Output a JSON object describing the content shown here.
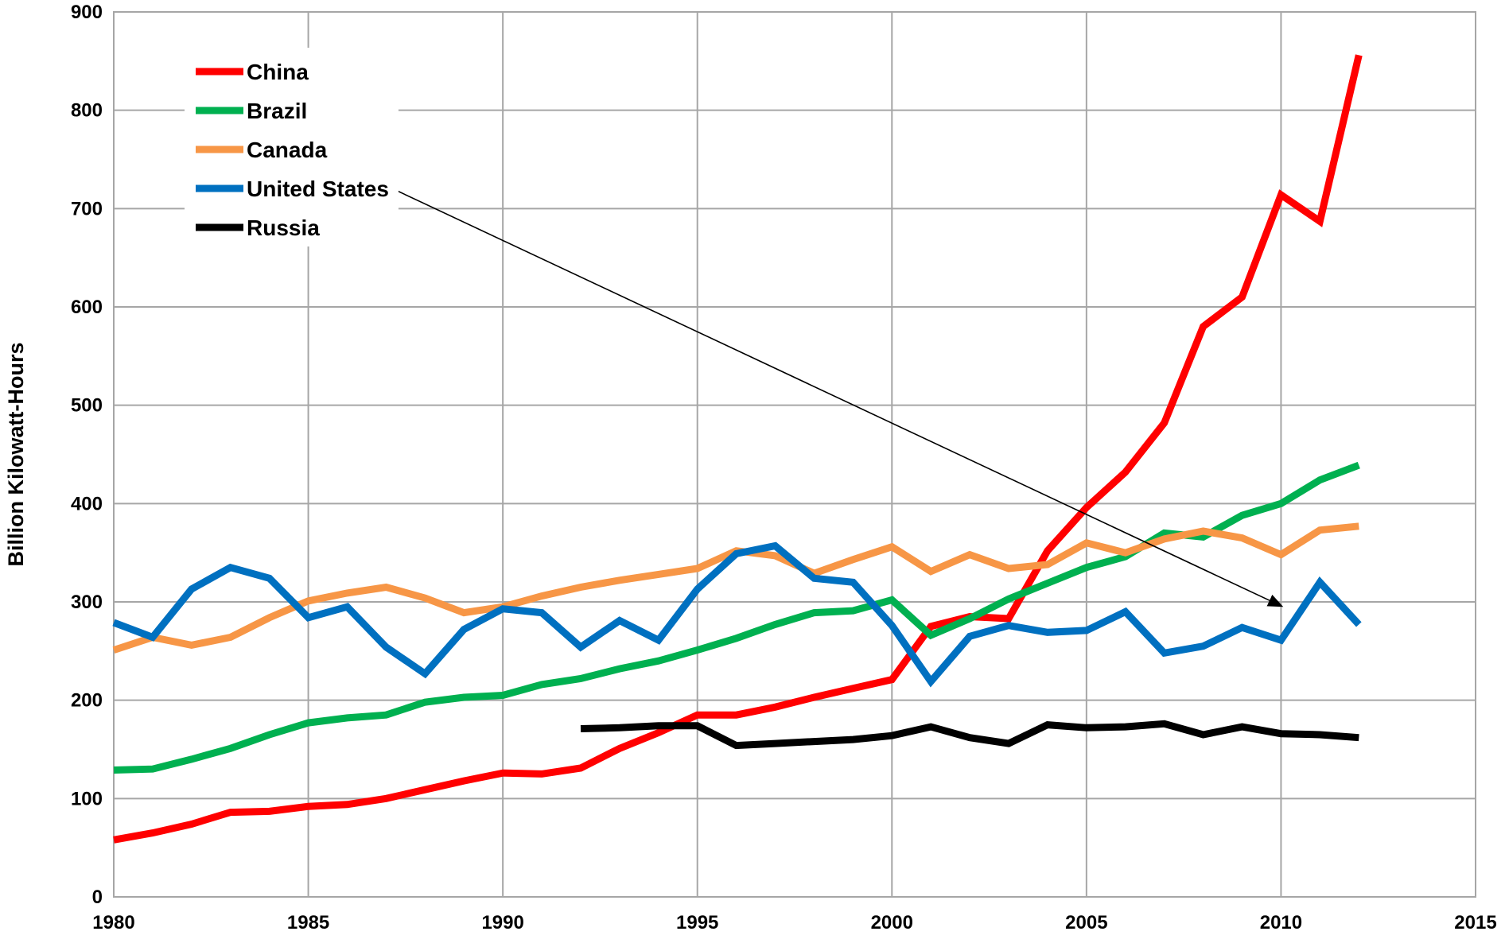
{
  "chart_data": {
    "type": "line",
    "title": "",
    "xlabel": "",
    "ylabel": "Billion Kilowatt-Hours",
    "xlim": [
      1980,
      2015
    ],
    "ylim": [
      0,
      900
    ],
    "xticks": [
      1980,
      1985,
      1990,
      1995,
      2000,
      2005,
      2010,
      2015
    ],
    "yticks": [
      0,
      100,
      200,
      300,
      400,
      500,
      600,
      700,
      800,
      900
    ],
    "grid": true,
    "legend_position": "top-left",
    "series": [
      {
        "name": "China",
        "color": "#ff0000",
        "x": [
          1980,
          1981,
          1982,
          1983,
          1984,
          1985,
          1986,
          1987,
          1988,
          1989,
          1990,
          1991,
          1992,
          1993,
          1994,
          1995,
          1996,
          1997,
          1998,
          1999,
          2000,
          2001,
          2002,
          2003,
          2004,
          2005,
          2006,
          2007,
          2008,
          2009,
          2010,
          2011,
          2012
        ],
        "values": [
          58,
          65,
          74,
          86,
          87,
          92,
          94,
          100,
          109,
          118,
          126,
          125,
          131,
          151,
          167,
          185,
          185,
          193,
          203,
          212,
          221,
          275,
          285,
          283,
          352,
          396,
          432,
          482,
          580,
          610,
          714,
          687,
          856
        ]
      },
      {
        "name": "Brazil",
        "color": "#00b050",
        "x": [
          1980,
          1981,
          1982,
          1983,
          1984,
          1985,
          1986,
          1987,
          1988,
          1989,
          1990,
          1991,
          1992,
          1993,
          1994,
          1995,
          1996,
          1997,
          1998,
          1999,
          2000,
          2001,
          2002,
          2003,
          2004,
          2005,
          2006,
          2007,
          2008,
          2009,
          2010,
          2011,
          2012
        ],
        "values": [
          129,
          130,
          140,
          151,
          165,
          177,
          182,
          185,
          198,
          203,
          205,
          216,
          222,
          232,
          240,
          251,
          263,
          277,
          289,
          291,
          302,
          266,
          283,
          303,
          319,
          335,
          346,
          370,
          366,
          388,
          400,
          424,
          439
        ]
      },
      {
        "name": "Canada",
        "color": "#f79646",
        "x": [
          1980,
          1981,
          1982,
          1983,
          1984,
          1985,
          1986,
          1987,
          1988,
          1989,
          1990,
          1991,
          1992,
          1993,
          1994,
          1995,
          1996,
          1997,
          1998,
          1999,
          2000,
          2001,
          2002,
          2003,
          2004,
          2005,
          2006,
          2007,
          2008,
          2009,
          2010,
          2011,
          2012
        ],
        "values": [
          251,
          264,
          256,
          264,
          284,
          301,
          309,
          315,
          304,
          289,
          295,
          306,
          315,
          322,
          328,
          334,
          352,
          347,
          329,
          343,
          356,
          331,
          348,
          334,
          338,
          360,
          350,
          364,
          372,
          365,
          348,
          373,
          377
        ]
      },
      {
        "name": "United States",
        "color": "#0070c0",
        "x": [
          1980,
          1981,
          1982,
          1983,
          1984,
          1985,
          1986,
          1987,
          1988,
          1989,
          1990,
          1991,
          1992,
          1993,
          1994,
          1995,
          1996,
          1997,
          1998,
          1999,
          2000,
          2001,
          2002,
          2003,
          2004,
          2005,
          2006,
          2007,
          2008,
          2009,
          2010,
          2011,
          2012
        ],
        "values": [
          279,
          264,
          313,
          335,
          324,
          284,
          295,
          254,
          227,
          272,
          293,
          289,
          254,
          281,
          261,
          313,
          349,
          357,
          324,
          320,
          276,
          219,
          265,
          276,
          269,
          271,
          290,
          248,
          255,
          274,
          261,
          320,
          277
        ]
      },
      {
        "name": "Russia",
        "color": "#000000",
        "x": [
          1992,
          1993,
          1994,
          1995,
          1996,
          1997,
          1998,
          1999,
          2000,
          2001,
          2002,
          2003,
          2004,
          2005,
          2006,
          2007,
          2008,
          2009,
          2010,
          2011,
          2012
        ],
        "values": [
          171,
          172,
          174,
          174,
          154,
          156,
          158,
          160,
          164,
          173,
          162,
          156,
          175,
          172,
          173,
          176,
          165,
          173,
          166,
          165,
          162
        ]
      }
    ],
    "annotations": [
      {
        "type": "arrow",
        "from_label": "United States",
        "to": {
          "x": 2010,
          "y": 296
        }
      }
    ]
  }
}
